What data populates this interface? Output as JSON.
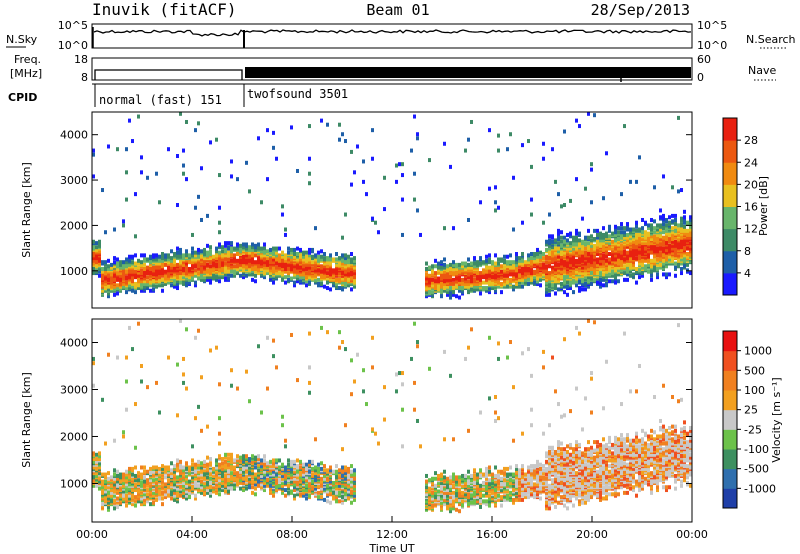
{
  "header": {
    "station": "Inuvik (fitACF)",
    "beam": "Beam 01",
    "date": "28/Sep/2013"
  },
  "noise_panel": {
    "left_label": "N.Sky",
    "left_ticks": [
      "10^5",
      "10^0"
    ],
    "right_label": "N.Search",
    "right_ticks": [
      "10^5",
      "10^0"
    ]
  },
  "freq_panel": {
    "left_label_1": "Freq.",
    "left_label_2": "[MHz]",
    "left_ticks": [
      "18",
      "8"
    ],
    "right_label": "Nave",
    "right_ticks": [
      "60",
      "0"
    ]
  },
  "cpid_panel": {
    "label": "CPID",
    "modes": [
      "normal (fast) 151",
      "twofsound 3501"
    ]
  },
  "chart_data": [
    {
      "type": "heatmap",
      "title": "",
      "xlabel": "",
      "ylabel": "Slant Range [km]",
      "ylim": [
        180,
        4500
      ],
      "yticks": [
        1000,
        2000,
        3000,
        4000
      ],
      "colorbar_label": "Power [dB]",
      "colorbar_ticks": [
        4,
        8,
        12,
        16,
        20,
        24,
        28
      ],
      "colorbar_colors": [
        "#1a1aff",
        "#1e5fa8",
        "#3d8a66",
        "#68b56b",
        "#e8c020",
        "#f08a10",
        "#ec5810",
        "#e82010"
      ],
      "grid": false
    },
    {
      "type": "heatmap",
      "title": "",
      "xlabel": "Time UT",
      "ylabel": "Slant Range [km]",
      "ylim": [
        180,
        4500
      ],
      "yticks": [
        1000,
        2000,
        3000,
        4000
      ],
      "xticks": [
        "00:00",
        "04:00",
        "08:00",
        "12:00",
        "16:00",
        "20:00",
        "00:00"
      ],
      "colorbar_label": "Velocity [m s⁻¹]",
      "colorbar_ticks": [
        "1000",
        "500",
        "100",
        "25",
        "-25",
        "-100",
        "-500",
        "-1000"
      ],
      "colorbar_colors": [
        "#1f3fa8",
        "#2f6fae",
        "#3d9060",
        "#6cc24a",
        "#c8c8c8",
        "#f2a020",
        "#f08020",
        "#f05020",
        "#e81010"
      ],
      "grid": false
    }
  ]
}
